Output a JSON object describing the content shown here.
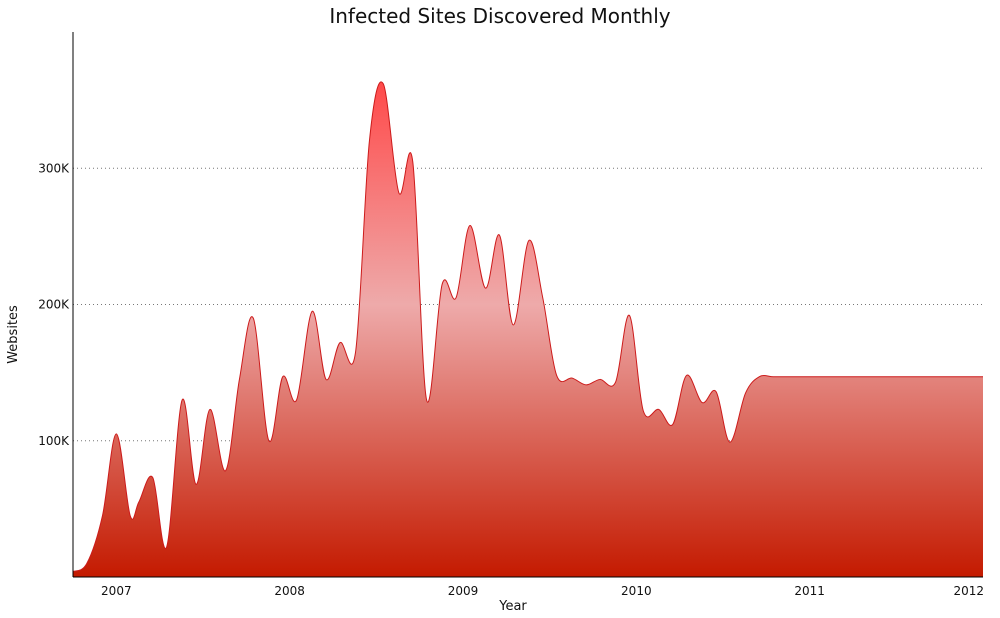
{
  "chart_data": {
    "type": "area",
    "title": "Infected Sites Discovered Monthly",
    "xlabel": "Year",
    "ylabel": "Websites",
    "xlim": [
      2006.75,
      2012.0
    ],
    "ylim": [
      0,
      400000
    ],
    "x_ticks": [
      {
        "value": 2007,
        "label": "2007"
      },
      {
        "value": 2008,
        "label": "2008"
      },
      {
        "value": 2009,
        "label": "2009"
      },
      {
        "value": 2010,
        "label": "2010"
      },
      {
        "value": 2011,
        "label": "2011"
      },
      {
        "value": 2012,
        "label": "2012"
      }
    ],
    "y_ticks": [
      {
        "value": 100000,
        "label": "100K"
      },
      {
        "value": 200000,
        "label": "200K"
      },
      {
        "value": 300000,
        "label": "300K"
      }
    ],
    "grid": {
      "y": true,
      "x": false,
      "style": "dotted"
    },
    "colors": {
      "fill_top": "#ff4a4a",
      "fill_mid": "#eeaaaa",
      "fill_bottom": "#c41a00",
      "line": "#cc1b1b"
    },
    "series": [
      {
        "x": [
          2006.75,
          2006.83,
          2006.92,
          2007.0,
          2007.08,
          2007.13,
          2007.21,
          2007.29,
          2007.38,
          2007.46,
          2007.54,
          2007.63,
          2007.71,
          2007.79,
          2007.88,
          2007.96,
          2008.04,
          2008.13,
          2008.21,
          2008.29,
          2008.38,
          2008.46,
          2008.54,
          2008.63,
          2008.71,
          2008.79,
          2008.88,
          2008.96,
          2009.04,
          2009.13,
          2009.21,
          2009.29,
          2009.38,
          2009.46,
          2009.54,
          2009.63,
          2009.71,
          2009.79,
          2009.88,
          2009.96,
          2010.04,
          2010.13,
          2010.21,
          2010.29,
          2010.38,
          2010.46,
          2010.54,
          2010.63,
          2010.71,
          2010.79,
          2010.88,
          2010.96,
          2011.04,
          2011.13,
          2011.21,
          2011.29,
          2011.38,
          2011.46,
          2011.54,
          2011.63,
          2011.71,
          2011.79,
          2011.88,
          2011.96,
          2012.0
        ],
        "values": [
          4000,
          10000,
          45000,
          105000,
          45000,
          55000,
          73000,
          22000,
          130000,
          68000,
          123000,
          78000,
          145000,
          190000,
          100000,
          147000,
          130000,
          195000,
          145000,
          172000,
          165000,
          320000,
          362000,
          282000,
          305000,
          130000,
          215000,
          205000,
          258000,
          212000,
          251000,
          185000,
          247000,
          205000,
          148000,
          146000,
          141000,
          145000,
          143000,
          192000,
          122000,
          123000,
          112000,
          148000,
          128000,
          136000,
          99000,
          135000,
          147000,
          147000,
          147000,
          147000,
          147000,
          147000,
          147000,
          147000,
          147000,
          147000,
          147000,
          147000,
          147000,
          147000,
          147000,
          147000,
          147000
        ]
      }
    ]
  }
}
